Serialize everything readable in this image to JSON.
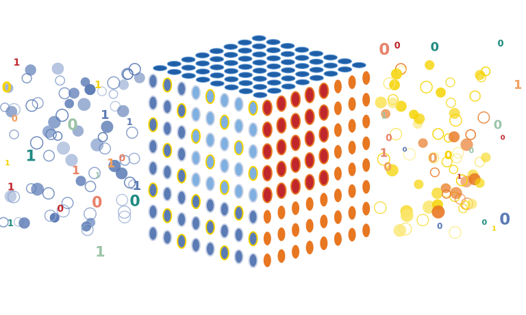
{
  "digits": [
    "0",
    "1",
    "1",
    "0",
    "0",
    "0",
    "1",
    "1",
    "0",
    "0",
    "1",
    "0",
    "1",
    "1",
    "0",
    "0",
    "1",
    "0",
    "1",
    "0",
    "1",
    "0",
    "1",
    "0",
    "0",
    "1",
    "0",
    "0",
    "1",
    "0",
    "1",
    "0",
    "1",
    "1",
    "0",
    "0",
    "1",
    "0",
    "1",
    "0"
  ]
}
